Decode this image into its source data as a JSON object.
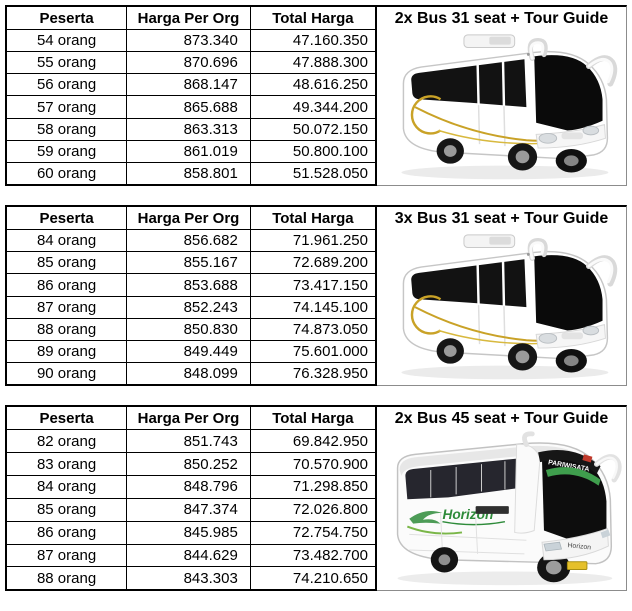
{
  "sections": [
    {
      "bus_label": "2x Bus 31 seat + Tour Guide",
      "table": {
        "headers": [
          "Peserta",
          "Harga Per Org",
          "Total Harga"
        ],
        "rows": [
          [
            "54 orang",
            "873.340",
            "47.160.350"
          ],
          [
            "55 orang",
            "870.696",
            "47.888.300"
          ],
          [
            "56 orang",
            "868.147",
            "48.616.250"
          ],
          [
            "57 orang",
            "865.688",
            "49.344.200"
          ],
          [
            "58 orang",
            "863.313",
            "50.072.150"
          ],
          [
            "59 orang",
            "861.019",
            "50.800.100"
          ],
          [
            "60 orang",
            "858.801",
            "51.528.050"
          ]
        ]
      }
    },
    {
      "bus_label": "3x Bus 31 seat + Tour Guide",
      "table": {
        "headers": [
          "Peserta",
          "Harga Per Org",
          "Total Harga"
        ],
        "rows": [
          [
            "84 orang",
            "856.682",
            "71.961.250"
          ],
          [
            "85 orang",
            "855.167",
            "72.689.200"
          ],
          [
            "86 orang",
            "853.688",
            "73.417.150"
          ],
          [
            "87 orang",
            "852.243",
            "74.145.100"
          ],
          [
            "88 orang",
            "850.830",
            "74.873.050"
          ],
          [
            "89 orang",
            "849.449",
            "75.601.000"
          ],
          [
            "90 orang",
            "848.099",
            "76.328.950"
          ]
        ]
      }
    },
    {
      "bus_label": "2x Bus 45 seat + Tour Guide",
      "bus_brand": "Horizon",
      "bus_sign": "PARIWISATA",
      "table": {
        "headers": [
          "Peserta",
          "Harga Per Org",
          "Total Harga"
        ],
        "rows": [
          [
            "82 orang",
            "851.743",
            "69.842.950"
          ],
          [
            "83 orang",
            "850.252",
            "70.570.900"
          ],
          [
            "84 orang",
            "848.796",
            "71.298.850"
          ],
          [
            "85 orang",
            "847.374",
            "72.026.800"
          ],
          [
            "86 orang",
            "845.985",
            "72.754.750"
          ],
          [
            "87 orang",
            "844.629",
            "73.482.700"
          ],
          [
            "88 orang",
            "843.303",
            "74.210.650"
          ]
        ]
      }
    }
  ],
  "colors": {
    "table_border": "#000000",
    "panel_border": "#8c8c8c",
    "text": "#000000",
    "accent_gold": "#c9a227",
    "brand_green": "#2e8b3a",
    "plate_yellow": "#e5c02a"
  }
}
